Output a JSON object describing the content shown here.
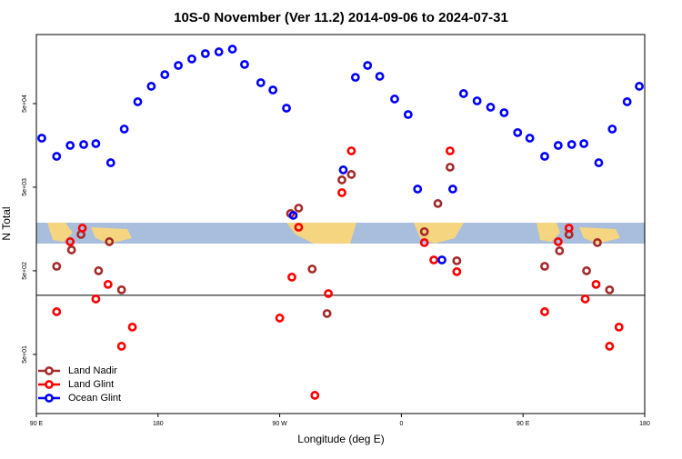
{
  "chart_data": {
    "type": "scatter",
    "title": "10S-0 November (Ver 11.2)   2014-09-06 to 2024-07-31",
    "x_label": "Longitude (deg E)",
    "y_label": "N Total",
    "log_y": true,
    "legend": "bottom-left",
    "xlim": [
      90,
      540
    ],
    "xticks": [
      {
        "value": 90,
        "label": "90 E"
      },
      180,
      {
        "value": 270,
        "label": "90 W"
      },
      {
        "value": 360,
        "label": "0"
      },
      {
        "value": 450,
        "label": "90 E"
      },
      {
        "value": 540,
        "label": "180"
      }
    ],
    "ylim": [
      9.8,
      335000
    ],
    "yticks": [
      {
        "value": 50,
        "label": "5e+01"
      },
      {
        "value": 500,
        "label": "5e+02"
      },
      {
        "value": 5000,
        "label": "5e+03"
      },
      {
        "value": 50000,
        "label": "5e+04"
      }
    ],
    "hline": 255,
    "series": [
      {
        "name": "Land Nadir",
        "color": "#a52a2a",
        "x": [
          105,
          116,
          123,
          136,
          144,
          153,
          278,
          284,
          294,
          305,
          316,
          323,
          377,
          387,
          396,
          401,
          466,
          477,
          484,
          497,
          505,
          514
        ],
        "values": [
          566,
          889,
          1360,
          500,
          1114,
          296,
          2420,
          2810,
          525,
          154,
          6110,
          7100,
          1470,
          3190,
          8670,
          659,
          566,
          867,
          1360,
          500,
          1087,
          296
        ]
      },
      {
        "name": "Land Glint",
        "color": "#ff0000",
        "x": [
          105,
          115,
          124,
          134,
          143,
          153,
          161,
          270,
          279,
          284,
          296,
          306,
          316,
          323,
          377,
          384,
          396,
          401,
          466,
          476,
          484,
          496,
          504,
          514,
          521
        ],
        "values": [
          162,
          1114,
          1620,
          230,
          344,
          62.6,
          106,
          136,
          420,
          1660,
          16.2,
          267,
          4300,
          13600,
          1087,
          674,
          13600,
          488,
          162,
          1114,
          1620,
          230,
          344,
          62.6,
          106
        ]
      },
      {
        "name": "Ocean Glint",
        "color": "#0000ff",
        "x": [
          94,
          105,
          115,
          125,
          134,
          145,
          155,
          165,
          175,
          185,
          195,
          205,
          215,
          225,
          235,
          244,
          256,
          265,
          275,
          280,
          317,
          326,
          335,
          344,
          355,
          365,
          372,
          390,
          398,
          406,
          416,
          426,
          436,
          446,
          455,
          466,
          476,
          486,
          495,
          506,
          516,
          527,
          536
        ],
        "values": [
          19300,
          11700,
          15800,
          16200,
          16600,
          9800,
          24800,
          52600,
          80500,
          111000,
          143000,
          171000,
          198000,
          208000,
          224000,
          147000,
          88900,
          72700,
          44100,
          2300,
          8050,
          103000,
          143000,
          106000,
          56700,
          37000,
          4750,
          674,
          4750,
          65900,
          53900,
          45300,
          38900,
          22500,
          19300,
          11700,
          15800,
          16200,
          16600,
          9800,
          24800,
          52600,
          80500
        ]
      }
    ]
  }
}
